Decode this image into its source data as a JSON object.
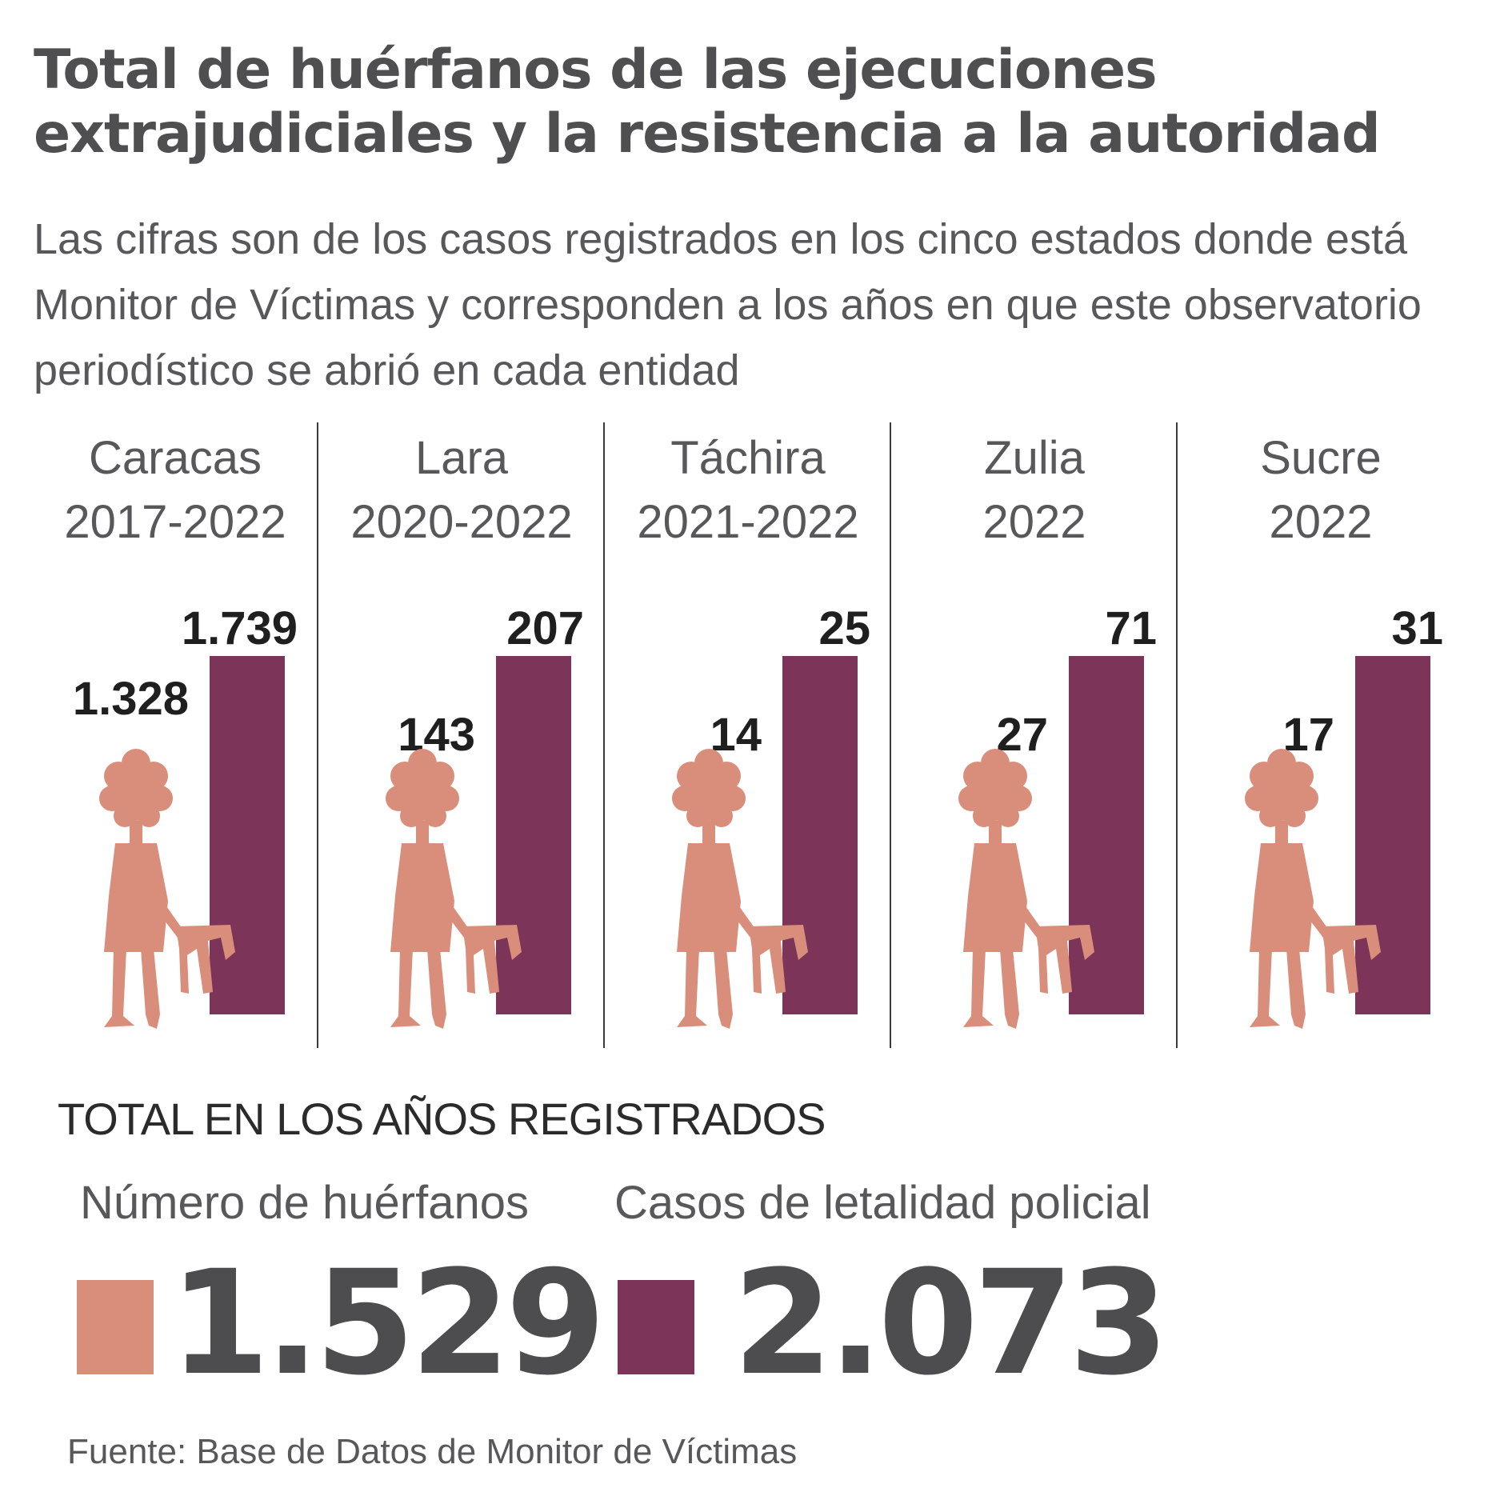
{
  "title": "Total de huérfanos de las ejecuciones extrajudiciales y la resistencia a la autoridad",
  "subtitle": "Las cifras son de los casos registrados en los cinco estados donde está Monitor de Víctimas y corresponden a los años en que este observatorio periodístico se abrió en cada entidad",
  "colors": {
    "orphans": "#d98e7b",
    "lethality": "#7c3558",
    "divider": "#3a3a3a",
    "number": "#1f1f1f"
  },
  "icon": "child-holding-doll-icon",
  "chart_data": {
    "type": "bar",
    "categories": [
      {
        "name": "Caracas",
        "period": "2017-2022"
      },
      {
        "name": "Lara",
        "period": "2020-2022"
      },
      {
        "name": "Táchira",
        "period": "2021-2022"
      },
      {
        "name": "Zulia",
        "period": "2022"
      },
      {
        "name": "Sucre",
        "period": "2022"
      }
    ],
    "series": [
      {
        "name": "Número de huérfanos",
        "values": [
          1328,
          143,
          14,
          27,
          17
        ],
        "labels": [
          "1.328",
          "143",
          "14",
          "27",
          "17"
        ]
      },
      {
        "name": "Casos de letalidad policial",
        "values": [
          1739,
          207,
          25,
          71,
          31
        ],
        "labels": [
          "1.739",
          "207",
          "25",
          "71",
          "31"
        ]
      }
    ]
  },
  "totals": {
    "heading": "TOTAL EN LOS AÑOS REGISTRADOS",
    "orphans_label": "Número de huérfanos",
    "orphans_value": "1.529",
    "lethality_label": "Casos de letalidad policial",
    "lethality_value": "2.073"
  },
  "source": "Fuente: Base de Datos de Monitor de Víctimas"
}
